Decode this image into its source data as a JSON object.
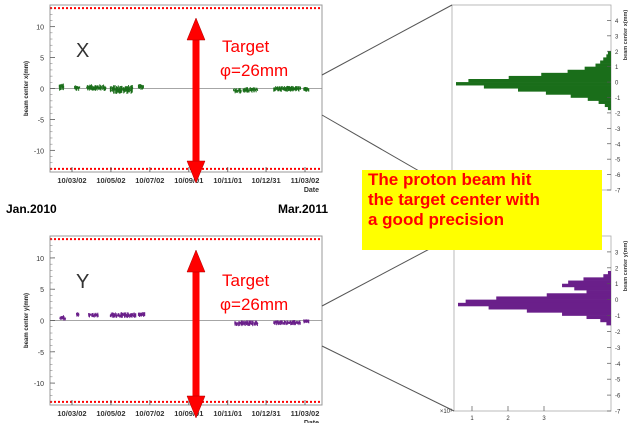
{
  "chart_data": [
    {
      "type": "scatter",
      "name": "x_timeline",
      "panel_letter": "X",
      "ylabel": "beam center x(mm)",
      "xlabel": "Date",
      "ylim": [
        -13.5,
        13.5
      ],
      "y_ticks": [
        "10",
        "5",
        "0",
        "-5",
        "-10"
      ],
      "y_tick_values": [
        10,
        5,
        0,
        -5,
        -10
      ],
      "x_ticks": [
        "10/03/02",
        "10/05/02",
        "10/07/02",
        "10/09/01",
        "10/11/01",
        "10/12/31",
        "11/03/02"
      ],
      "target_limits_mm": [
        13,
        -13
      ],
      "color": "#1a6e1a",
      "runs": [
        {
          "start": "10/02/10",
          "end": "10/02/17",
          "y": 0.4,
          "spread": 0.7
        },
        {
          "start": "10/03/06",
          "end": "10/03/14",
          "y": 0.2,
          "spread": 0.5
        },
        {
          "start": "10/03/25",
          "end": "10/04/24",
          "y": 0.3,
          "spread": 0.6
        },
        {
          "start": "10/05/01",
          "end": "10/06/05",
          "y": 0.0,
          "spread": 0.9
        },
        {
          "start": "10/06/14",
          "end": "10/06/22",
          "y": 0.4,
          "spread": 0.5
        },
        {
          "start": "10/11/10",
          "end": "10/11/22",
          "y": -0.2,
          "spread": 0.5
        },
        {
          "start": "10/11/25",
          "end": "10/12/18",
          "y": -0.1,
          "spread": 0.5
        },
        {
          "start": "11/01/12",
          "end": "11/02/23",
          "y": 0.1,
          "spread": 0.5
        },
        {
          "start": "11/02/28",
          "end": "11/03/08",
          "y": 0.0,
          "spread": 0.4
        }
      ]
    },
    {
      "type": "scatter",
      "name": "y_timeline",
      "panel_letter": "Y",
      "ylabel": "beam center y(mm)",
      "xlabel": "Date",
      "ylim": [
        -13.5,
        13.5
      ],
      "y_ticks": [
        "10",
        "5",
        "0",
        "-5",
        "-10"
      ],
      "y_tick_values": [
        10,
        5,
        0,
        -5,
        -10
      ],
      "x_ticks": [
        "10/03/02",
        "10/05/02",
        "10/07/02",
        "10/09/01",
        "10/11/01",
        "10/12/31",
        "11/03/02"
      ],
      "target_limits_mm": [
        13,
        -13
      ],
      "color": "#6a1f8a",
      "runs": [
        {
          "start": "10/02/11",
          "end": "10/02/20",
          "y": 0.6,
          "spread": 0.5
        },
        {
          "start": "10/03/09",
          "end": "10/03/13",
          "y": 1.1,
          "spread": 0.4
        },
        {
          "start": "10/03/28",
          "end": "10/04/12",
          "y": 1.0,
          "spread": 0.4
        },
        {
          "start": "10/05/01",
          "end": "10/06/10",
          "y": 1.0,
          "spread": 0.5
        },
        {
          "start": "10/06/14",
          "end": "10/06/24",
          "y": 1.1,
          "spread": 0.4
        },
        {
          "start": "10/11/12",
          "end": "10/12/18",
          "y": -0.3,
          "spread": 0.5
        },
        {
          "start": "11/01/12",
          "end": "11/02/23",
          "y": -0.2,
          "spread": 0.4
        },
        {
          "start": "11/02/28",
          "end": "11/03/08",
          "y": 0.0,
          "spread": 0.3
        }
      ]
    },
    {
      "type": "bar",
      "name": "x_projection",
      "ylabel": "beam center x(mm)",
      "orientation": "horizontal",
      "ylim": [
        -7,
        5
      ],
      "y_ticks": [
        "4",
        "3",
        "2",
        "1",
        "0",
        "-1",
        "-2",
        "-3",
        "-4",
        "-5",
        "-6",
        "-7"
      ],
      "y_tick_values": [
        4,
        3,
        2,
        1,
        0,
        -1,
        -2,
        -3,
        -4,
        -5,
        -6,
        -7
      ],
      "color": "#1a6e1a",
      "bins": [
        {
          "center": 1.9,
          "value": 0.02
        },
        {
          "center": 1.7,
          "value": 0.03
        },
        {
          "center": 1.5,
          "value": 0.05
        },
        {
          "center": 1.3,
          "value": 0.07
        },
        {
          "center": 1.1,
          "value": 0.1
        },
        {
          "center": 0.9,
          "value": 0.17
        },
        {
          "center": 0.7,
          "value": 0.28
        },
        {
          "center": 0.5,
          "value": 0.45
        },
        {
          "center": 0.3,
          "value": 0.66
        },
        {
          "center": 0.1,
          "value": 0.92
        },
        {
          "center": -0.1,
          "value": 1.0
        },
        {
          "center": -0.3,
          "value": 0.82
        },
        {
          "center": -0.5,
          "value": 0.6
        },
        {
          "center": -0.7,
          "value": 0.42
        },
        {
          "center": -0.9,
          "value": 0.26
        },
        {
          "center": -1.1,
          "value": 0.15
        },
        {
          "center": -1.3,
          "value": 0.08
        },
        {
          "center": -1.5,
          "value": 0.04
        },
        {
          "center": -1.7,
          "value": 0.02
        }
      ]
    },
    {
      "type": "bar",
      "name": "y_projection",
      "ylabel": "beam center y(mm)",
      "orientation": "horizontal",
      "ylim": [
        -7,
        4
      ],
      "y_ticks": [
        "3",
        "2",
        "1",
        "0",
        "-1",
        "-2",
        "-3",
        "-4",
        "-5",
        "-6",
        "-7"
      ],
      "y_tick_values": [
        3,
        2,
        1,
        0,
        -1,
        -2,
        -3,
        -4,
        -5,
        -6,
        -7
      ],
      "x_tick_labels": [
        "1",
        "2",
        "3"
      ],
      "exponent_label": "×10³",
      "color": "#6a1f8a",
      "bins": [
        {
          "center": 1.7,
          "value": 0.02
        },
        {
          "center": 1.5,
          "value": 0.05
        },
        {
          "center": 1.3,
          "value": 0.18
        },
        {
          "center": 1.1,
          "value": 0.28
        },
        {
          "center": 0.9,
          "value": 0.32
        },
        {
          "center": 0.7,
          "value": 0.24
        },
        {
          "center": 0.5,
          "value": 0.16
        },
        {
          "center": 0.3,
          "value": 0.42
        },
        {
          "center": 0.1,
          "value": 0.75
        },
        {
          "center": -0.1,
          "value": 0.95
        },
        {
          "center": -0.3,
          "value": 1.0
        },
        {
          "center": -0.5,
          "value": 0.8
        },
        {
          "center": -0.7,
          "value": 0.55
        },
        {
          "center": -0.9,
          "value": 0.32
        },
        {
          "center": -1.1,
          "value": 0.16
        },
        {
          "center": -1.3,
          "value": 0.07
        },
        {
          "center": -1.5,
          "value": 0.03
        }
      ]
    }
  ],
  "annotations": {
    "target_text": "Target",
    "phi_text": "φ=26mm",
    "callout_lines": [
      "The proton beam hit",
      "the target center with",
      "a good precision"
    ],
    "range_start": "Jan.2010",
    "range_end": "Mar.2011"
  },
  "colors": {
    "annotation_red": "#ff0000",
    "callout_bg": "#ffff00",
    "limit_dotted_red": "#ff0000"
  }
}
